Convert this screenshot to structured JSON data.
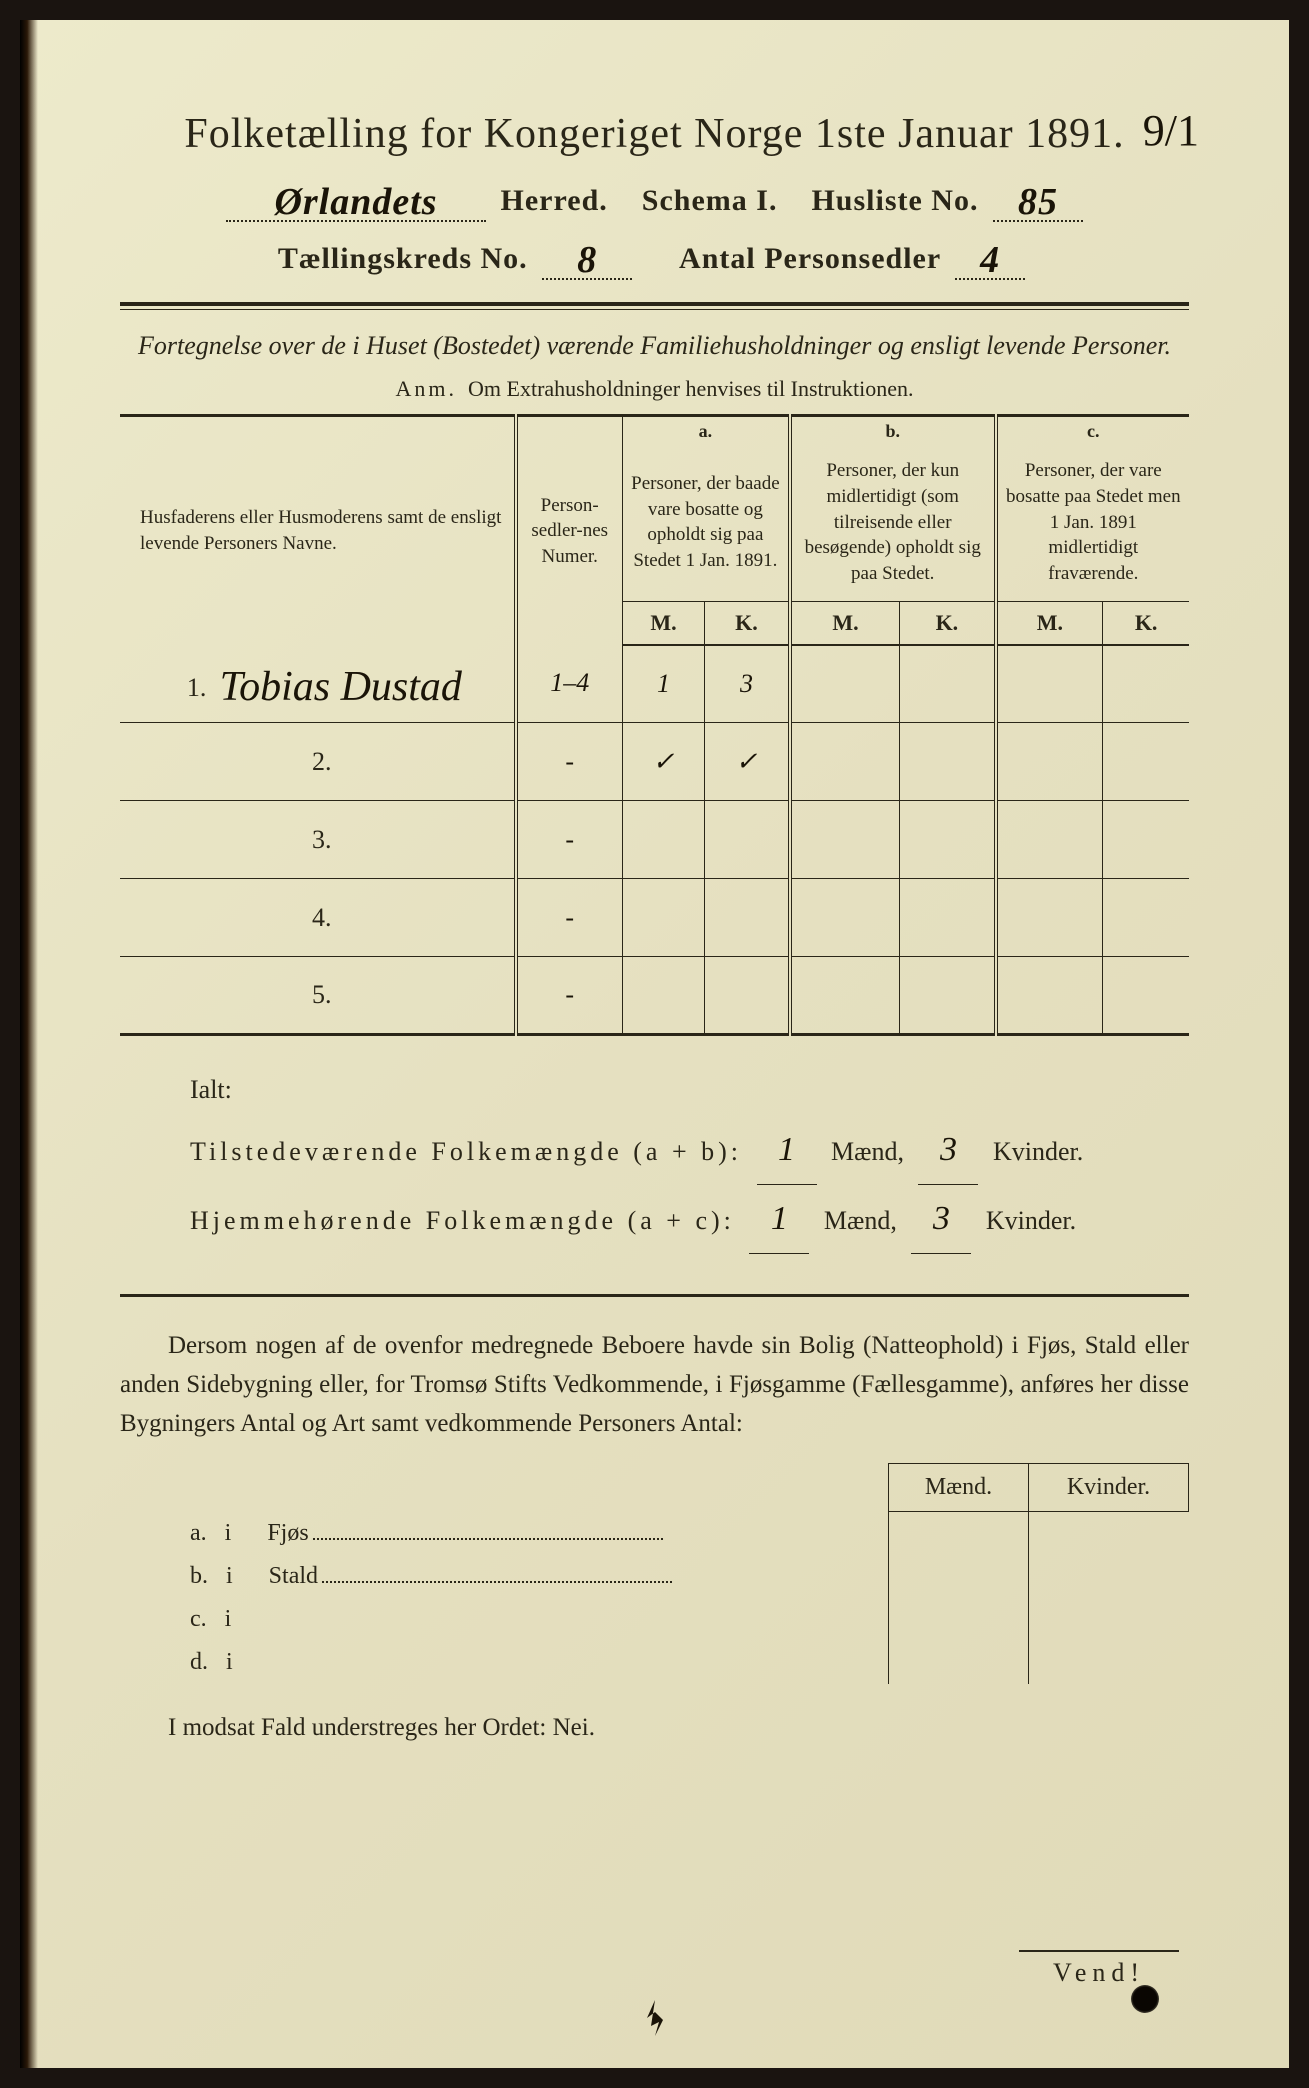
{
  "header": {
    "title": "Folketælling for Kongeriget Norge 1ste Januar 1891.",
    "herred_hand": "Ørlandets",
    "herred_label": "Herred.",
    "schema_label": "Schema I.",
    "husliste_label": "Husliste No.",
    "husliste_hand": "85",
    "corner_mark": "9/1",
    "kreds_label": "Tællingskreds No.",
    "kreds_hand": "8",
    "personsedler_label": "Antal Personsedler",
    "personsedler_hand": "4"
  },
  "subtitle": "Fortegnelse over de i Huset (Bostedet) værende Familiehusholdninger og ensligt levende Personer.",
  "anm": {
    "prefix": "Anm.",
    "text": "Om Extrahusholdninger henvises til Instruktionen."
  },
  "table": {
    "col1": "Husfaderens eller Husmoderens samt de ensligt levende Personers Navne.",
    "col2": "Person-sedler-nes Numer.",
    "abc": {
      "a": "a.",
      "b": "b.",
      "c": "c."
    },
    "col_a": "Personer, der baade vare bosatte og opholdt sig paa Stedet 1 Jan. 1891.",
    "col_b": "Personer, der kun midlertidigt (som tilreisende eller besøgende) opholdt sig paa Stedet.",
    "col_c": "Personer, der vare bosatte paa Stedet men 1 Jan. 1891 midlertidigt fraværende.",
    "m": "M.",
    "k": "K.",
    "rows": [
      {
        "n": "1.",
        "name": "Tobias Dustad",
        "numer": "1–4",
        "a_m": "1",
        "a_k": "3",
        "b_m": "",
        "b_k": "",
        "c_m": "",
        "c_k": ""
      },
      {
        "n": "2.",
        "name": "",
        "numer": "-",
        "a_m": "✓",
        "a_k": "✓",
        "b_m": "",
        "b_k": "",
        "c_m": "",
        "c_k": ""
      },
      {
        "n": "3.",
        "name": "",
        "numer": "-",
        "a_m": "",
        "a_k": "",
        "b_m": "",
        "b_k": "",
        "c_m": "",
        "c_k": ""
      },
      {
        "n": "4.",
        "name": "",
        "numer": "-",
        "a_m": "",
        "a_k": "",
        "b_m": "",
        "b_k": "",
        "c_m": "",
        "c_k": ""
      },
      {
        "n": "5.",
        "name": "",
        "numer": "-",
        "a_m": "",
        "a_k": "",
        "b_m": "",
        "b_k": "",
        "c_m": "",
        "c_k": ""
      }
    ]
  },
  "totals": {
    "ialt": "Ialt:",
    "line1_label": "Tilstedeværende Folkemængde (a + b):",
    "line2_label": "Hjemmehørende Folkemængde (a + c):",
    "maend": "Mænd,",
    "kvinder": "Kvinder.",
    "l1_m": "1",
    "l1_k": "3",
    "l2_m": "1",
    "l2_k": "3"
  },
  "para": "Dersom nogen af de ovenfor medregnede Beboere havde sin Bolig (Natteophold) i Fjøs, Stald eller anden Sidebygning eller, for Tromsø Stifts Vedkommende, i Fjøsgamme (Fællesgamme), anføres her disse Bygningers Antal og Art samt vedkommende Personers Antal:",
  "subtable": {
    "h_maend": "Mænd.",
    "h_kvinder": "Kvinder.",
    "rows": [
      {
        "letter": "a.",
        "i": "i",
        "label": "Fjøs"
      },
      {
        "letter": "b.",
        "i": "i",
        "label": "Stald"
      },
      {
        "letter": "c.",
        "i": "i",
        "label": ""
      },
      {
        "letter": "d.",
        "i": "i",
        "label": ""
      }
    ]
  },
  "nei": "I modsat Fald understreges her Ordet: Nei.",
  "vend": "Vend!",
  "colors": {
    "paper": "#e8e4c8",
    "ink": "#2a2618",
    "handwriting": "#1a1408"
  }
}
